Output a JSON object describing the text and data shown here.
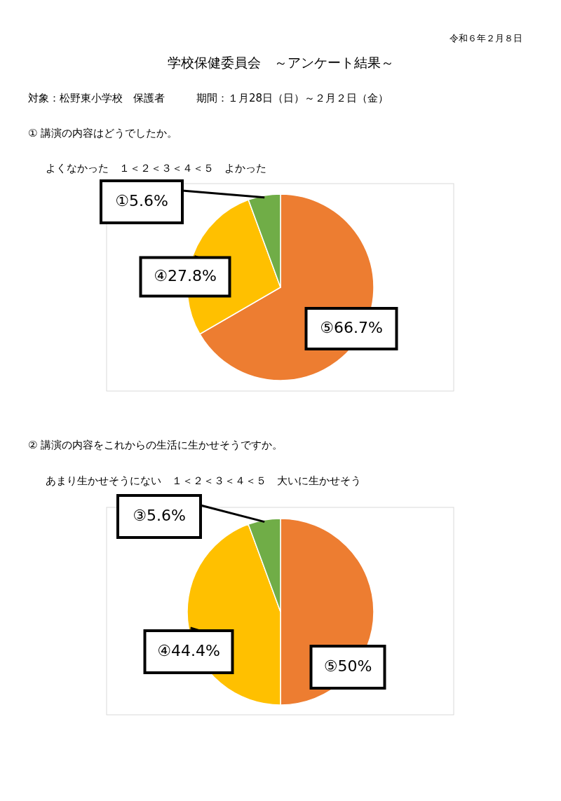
{
  "chart_data": [
    {
      "type": "other",
      "title": "学校保健委員会　～アンケート結果～",
      "annotations": [
        "令和６年２月８日",
        "対象：松野東小学校　保護者　　　期間：１月28日（日）～２月２日（金）"
      ]
    },
    {
      "type": "pie",
      "title": "①  講演の内容はどうでしたか。",
      "subtitle": "よくなかった　１＜２＜３＜４＜５　よかった",
      "categories": [
        "⑤",
        "④",
        "①"
      ],
      "values": [
        66.7,
        27.8,
        5.6
      ],
      "colors": [
        "#ed7d31",
        "#ffc000",
        "#70ad47"
      ],
      "value_labels": [
        "66.7%",
        "27.8%",
        "5.6%"
      ],
      "legend": false
    },
    {
      "type": "pie",
      "title": "②  講演の内容をこれからの生活に生かせそうですか。",
      "subtitle": "あまり生かせそうにない　１＜２＜３＜４＜５　大いに生かせそう",
      "categories": [
        "⑤",
        "④",
        "③"
      ],
      "values": [
        50,
        44.4,
        5.6
      ],
      "colors": [
        "#ed7d31",
        "#ffc000",
        "#70ad47"
      ],
      "value_labels": [
        "50%",
        "44.4%",
        "5.6%"
      ],
      "legend": false
    }
  ]
}
